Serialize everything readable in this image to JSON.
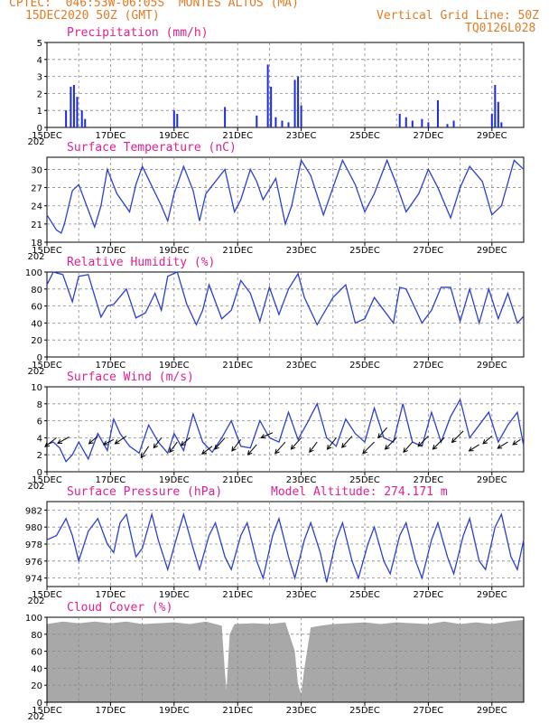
{
  "header": {
    "line1_left": "CPTEC:  046:53W-06:05S  MONTES ALTOS (MA)",
    "line2_left": "15DEC2020 50Z (GMT)",
    "line1_right": "Vertical Grid Line: 50Z",
    "line2_right": "TQ0126L028"
  },
  "date_labels": [
    "15DEC",
    "17DEC",
    "19DEC",
    "21DEC",
    "23DEC",
    "25DEC",
    "27DEC",
    "29DEC"
  ],
  "year_fragment": "202",
  "colors": {
    "series": "#2a3fd4",
    "bars": "#1a2be0",
    "cloud": "#a8a8a8",
    "title": "#e0208f",
    "header": "#e07b24"
  },
  "chart_data": [
    {
      "type": "bar",
      "name": "precip",
      "title": "Precipitation (mm/h)",
      "ylim": [
        0,
        5
      ],
      "yticks": [
        0,
        1,
        2,
        3,
        4,
        5
      ],
      "spikes": [
        [
          0.6,
          1.0
        ],
        [
          0.75,
          2.4
        ],
        [
          0.85,
          2.5
        ],
        [
          0.95,
          1.8
        ],
        [
          1.1,
          1.0
        ],
        [
          1.2,
          0.5
        ],
        [
          4.0,
          1.0
        ],
        [
          4.1,
          0.8
        ],
        [
          5.6,
          1.2
        ],
        [
          6.6,
          0.7
        ],
        [
          6.95,
          3.7
        ],
        [
          7.05,
          2.4
        ],
        [
          7.2,
          0.6
        ],
        [
          7.4,
          0.4
        ],
        [
          7.6,
          0.3
        ],
        [
          7.8,
          2.8
        ],
        [
          7.9,
          3.0
        ],
        [
          8.0,
          1.3
        ],
        [
          11.1,
          0.8
        ],
        [
          11.3,
          0.6
        ],
        [
          11.5,
          0.4
        ],
        [
          11.8,
          0.5
        ],
        [
          12.0,
          0.3
        ],
        [
          12.3,
          1.6
        ],
        [
          12.6,
          0.2
        ],
        [
          12.8,
          0.4
        ],
        [
          14.0,
          0.8
        ],
        [
          14.1,
          2.5
        ],
        [
          14.2,
          1.5
        ],
        [
          14.3,
          0.3
        ]
      ]
    },
    {
      "type": "line",
      "name": "temp",
      "title": "Surface Temperature (nC)",
      "ylim": [
        18,
        32
      ],
      "yticks": [
        18,
        21,
        24,
        27,
        30
      ],
      "x": [
        0,
        0.3,
        0.45,
        0.55,
        0.8,
        1.0,
        1.5,
        1.7,
        1.9,
        2.2,
        2.6,
        2.8,
        3.0,
        3.6,
        3.8,
        4.0,
        4.3,
        4.6,
        4.8,
        5.0,
        5.6,
        5.9,
        6.1,
        6.4,
        6.6,
        6.8,
        7.2,
        7.5,
        7.7,
        8.0,
        8.3,
        8.7,
        9.0,
        9.3,
        9.7,
        10.0,
        10.3,
        10.7,
        11.0,
        11.3,
        11.7,
        12.0,
        12.3,
        12.7,
        13.0,
        13.3,
        13.7,
        14.0,
        14.3,
        14.7,
        15.0
      ],
      "y": [
        22.5,
        20.0,
        19.5,
        21,
        26.5,
        27.5,
        20.5,
        24,
        30,
        26,
        23,
        27.5,
        30.5,
        24,
        21.5,
        26,
        30.5,
        26.5,
        21.5,
        26,
        30,
        23,
        25,
        30,
        28,
        25,
        28.5,
        21,
        24,
        31.5,
        29,
        22.5,
        27,
        31.5,
        27.5,
        23,
        26,
        31.5,
        27.5,
        23,
        26,
        30,
        27,
        22,
        27,
        30.5,
        28,
        22.5,
        24,
        31.5,
        30
      ]
    },
    {
      "type": "line",
      "name": "rh",
      "title": "Relative Humidity (%)",
      "ylim": [
        0,
        100
      ],
      "yticks": [
        0,
        20,
        40,
        60,
        80,
        100
      ],
      "x": [
        0,
        0.2,
        0.5,
        0.8,
        1.0,
        1.3,
        1.7,
        1.9,
        2.1,
        2.5,
        2.8,
        3.1,
        3.4,
        3.6,
        3.8,
        4.1,
        4.4,
        4.7,
        4.9,
        5.1,
        5.5,
        5.8,
        6.1,
        6.4,
        6.7,
        7.0,
        7.3,
        7.6,
        7.9,
        8.1,
        8.5,
        9.0,
        9.4,
        9.7,
        10.0,
        10.3,
        10.6,
        10.9,
        11.1,
        11.3,
        11.8,
        12.1,
        12.4,
        12.7,
        13.0,
        13.3,
        13.6,
        13.9,
        14.2,
        14.5,
        14.8,
        15.0
      ],
      "y": [
        85,
        100,
        97,
        65,
        95,
        97,
        47,
        60,
        62,
        80,
        46,
        52,
        75,
        55,
        95,
        100,
        62,
        38,
        55,
        85,
        45,
        55,
        90,
        75,
        42,
        82,
        50,
        80,
        98,
        70,
        38,
        70,
        85,
        40,
        45,
        70,
        55,
        40,
        82,
        80,
        40,
        55,
        82,
        82,
        42,
        80,
        40,
        80,
        45,
        75,
        40,
        48
      ]
    },
    {
      "type": "line",
      "name": "wind",
      "title": "Surface Wind (m/s)",
      "ylim": [
        0,
        10
      ],
      "yticks": [
        0,
        2,
        4,
        6,
        8,
        10
      ],
      "x": [
        0,
        0.2,
        0.4,
        0.6,
        0.8,
        1.0,
        1.3,
        1.6,
        1.9,
        2.1,
        2.3,
        2.6,
        2.9,
        3.2,
        3.5,
        3.8,
        4.0,
        4.3,
        4.6,
        4.9,
        5.2,
        5.5,
        5.8,
        6.1,
        6.4,
        6.7,
        7.0,
        7.3,
        7.6,
        7.9,
        8.2,
        8.5,
        8.8,
        9.1,
        9.4,
        9.7,
        10.0,
        10.3,
        10.6,
        10.9,
        11.2,
        11.5,
        11.8,
        12.1,
        12.4,
        12.7,
        13.0,
        13.3,
        13.6,
        13.9,
        14.2,
        14.5,
        14.8,
        15.0
      ],
      "y": [
        3.2,
        3.5,
        2.8,
        1.2,
        2.0,
        3.5,
        1.5,
        4.5,
        2.5,
        6.2,
        4.5,
        3.0,
        2.2,
        5.5,
        3.5,
        2.2,
        4.5,
        2.5,
        6.8,
        3.5,
        2.3,
        4.0,
        6.0,
        3.0,
        2.8,
        6.0,
        4.0,
        3.5,
        7.0,
        3.8,
        5.8,
        8.0,
        4.0,
        3.0,
        6.2,
        4.5,
        3.5,
        7.5,
        4.0,
        3.5,
        8.0,
        3.5,
        3.0,
        7.0,
        3.5,
        6.5,
        8.5,
        4.0,
        5.5,
        7.0,
        3.5,
        5.5,
        7.0,
        3.0
      ],
      "arrows": [
        [
          0.3,
          4,
          -0.9,
          -0.7
        ],
        [
          0.7,
          4.1,
          -0.9,
          -0.5
        ],
        [
          1.6,
          4.2,
          -0.7,
          -0.6
        ],
        [
          2.1,
          3.8,
          -0.8,
          -0.4
        ],
        [
          2.5,
          4.2,
          -0.9,
          -0.6
        ],
        [
          3.2,
          3.0,
          -0.6,
          -0.9
        ],
        [
          3.6,
          4.0,
          -0.6,
          -0.8
        ],
        [
          4.1,
          3.5,
          -0.6,
          -0.8
        ],
        [
          4.5,
          4.0,
          -0.7,
          -0.6
        ],
        [
          5.2,
          3.0,
          -0.8,
          -0.6
        ],
        [
          5.6,
          4.0,
          -0.8,
          -0.9
        ],
        [
          6.1,
          3.8,
          -0.7,
          -0.9
        ],
        [
          6.6,
          3.2,
          -0.7,
          -0.8
        ],
        [
          7.1,
          4.6,
          -0.9,
          -0.4
        ],
        [
          7.5,
          3.5,
          -0.8,
          -0.9
        ],
        [
          8.0,
          4.0,
          -0.8,
          -0.9
        ],
        [
          8.5,
          3.5,
          -0.6,
          -0.8
        ],
        [
          9.1,
          4.0,
          -0.7,
          -0.9
        ],
        [
          9.6,
          4.2,
          -0.8,
          -0.9
        ],
        [
          10.3,
          3.5,
          -0.9,
          -0.9
        ],
        [
          10.7,
          5.2,
          -0.7,
          -0.8
        ],
        [
          11.0,
          4.0,
          -0.9,
          -0.9
        ],
        [
          11.5,
          3.5,
          -0.7,
          -0.8
        ],
        [
          12.0,
          4.2,
          -0.8,
          -0.8
        ],
        [
          12.5,
          4.0,
          -0.9,
          -0.9
        ],
        [
          13.1,
          4.8,
          -0.9,
          -0.9
        ],
        [
          13.6,
          3.2,
          -0.8,
          -0.5
        ],
        [
          14.0,
          4.2,
          -0.7,
          -0.6
        ],
        [
          14.5,
          3.5,
          -0.8,
          -0.5
        ],
        [
          14.9,
          3.8,
          -0.6,
          -0.4
        ]
      ]
    },
    {
      "type": "line",
      "name": "pres",
      "title": "Surface Pressure (hPa)",
      "subtitle": "Model Altitude: 274.171 m",
      "ylim": [
        973,
        983
      ],
      "yticks": [
        974,
        976,
        978,
        980,
        982
      ],
      "x": [
        0,
        0.3,
        0.6,
        0.8,
        1.0,
        1.3,
        1.6,
        1.9,
        2.1,
        2.3,
        2.5,
        2.8,
        3.0,
        3.3,
        3.5,
        3.8,
        4.1,
        4.3,
        4.6,
        4.8,
        5.1,
        5.3,
        5.6,
        5.8,
        6.1,
        6.3,
        6.6,
        6.8,
        7.1,
        7.3,
        7.6,
        7.8,
        8.1,
        8.3,
        8.6,
        8.8,
        9.1,
        9.3,
        9.6,
        9.8,
        10.1,
        10.3,
        10.6,
        10.8,
        11.1,
        11.3,
        11.6,
        11.8,
        12.1,
        12.3,
        12.6,
        12.8,
        13.1,
        13.3,
        13.6,
        13.8,
        14.1,
        14.3,
        14.6,
        14.8,
        15.0
      ],
      "y": [
        978.5,
        979,
        981,
        979,
        976,
        979.5,
        981,
        978,
        977,
        980.5,
        981.5,
        976.5,
        977.5,
        981.5,
        978.5,
        975,
        979,
        981.5,
        977.5,
        975,
        979,
        980.5,
        976.5,
        975,
        979,
        980.5,
        976,
        974,
        979,
        981,
        976.5,
        974,
        978.5,
        980.5,
        977,
        973.5,
        978.5,
        980.5,
        976,
        974,
        978,
        980,
        976,
        974.5,
        979,
        980.5,
        976,
        974,
        978.5,
        980.5,
        976.5,
        974.5,
        979,
        981,
        976,
        975,
        980,
        981.5,
        976.5,
        975,
        978.5
      ]
    },
    {
      "type": "area",
      "name": "cloud",
      "title": "Cloud Cover (%)",
      "ylim": [
        0,
        100
      ],
      "yticks": [
        0,
        20,
        40,
        60,
        80,
        100
      ],
      "x": [
        0,
        0.5,
        1.0,
        1.5,
        2.0,
        2.5,
        3.0,
        3.5,
        4.0,
        4.5,
        5.0,
        5.5,
        5.6,
        5.65,
        5.75,
        5.9,
        6.5,
        7.0,
        7.5,
        7.8,
        7.9,
        8.0,
        8.1,
        8.3,
        8.6,
        9.0,
        9.5,
        10.0,
        10.5,
        11.0,
        11.5,
        12.0,
        12.5,
        13.0,
        13.5,
        14.0,
        14.5,
        15.0
      ],
      "y": [
        92,
        95,
        93,
        95,
        93,
        95,
        92,
        93,
        94,
        92,
        95,
        90,
        35,
        15,
        80,
        92,
        93,
        92,
        94,
        60,
        20,
        10,
        40,
        88,
        90,
        92,
        93,
        94,
        92,
        94,
        93,
        92,
        95,
        92,
        94,
        92,
        95,
        97
      ]
    }
  ]
}
